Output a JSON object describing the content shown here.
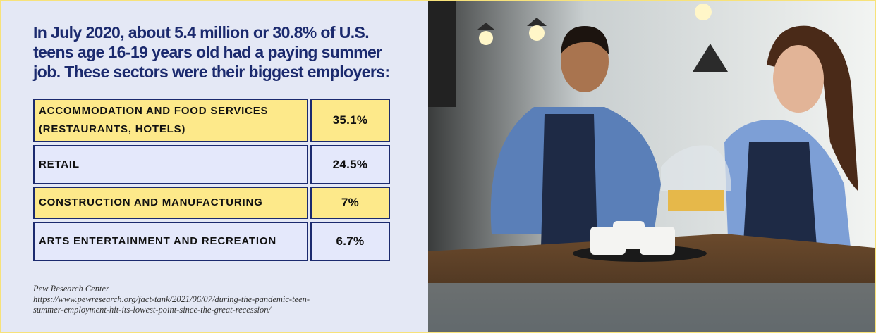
{
  "header": {
    "title": "In July 2020, about 5.4 million or 30.8% of U.S. teens age 16-19 years old had a paying summer job. These sectors were their biggest employers:"
  },
  "table": {
    "rows": [
      [
        "ACCOMMODATION AND FOOD SERVICES (RESTAURANTS, HOTELS)",
        "35.1%"
      ],
      [
        "RETAIL",
        "24.5%"
      ],
      [
        "CONSTRUCTION AND MANUFACTURING",
        "7%"
      ],
      [
        "ARTS ENTERTAINMENT AND RECREATION",
        "6.7%"
      ]
    ]
  },
  "source": {
    "name": "Pew Research Center",
    "url": "https://www.pewresearch.org/fact-tank/2021/06/07/during-the-pandemic-teen-summer-employment-hit-its-lowest-point-since-the-great-recession/"
  }
}
